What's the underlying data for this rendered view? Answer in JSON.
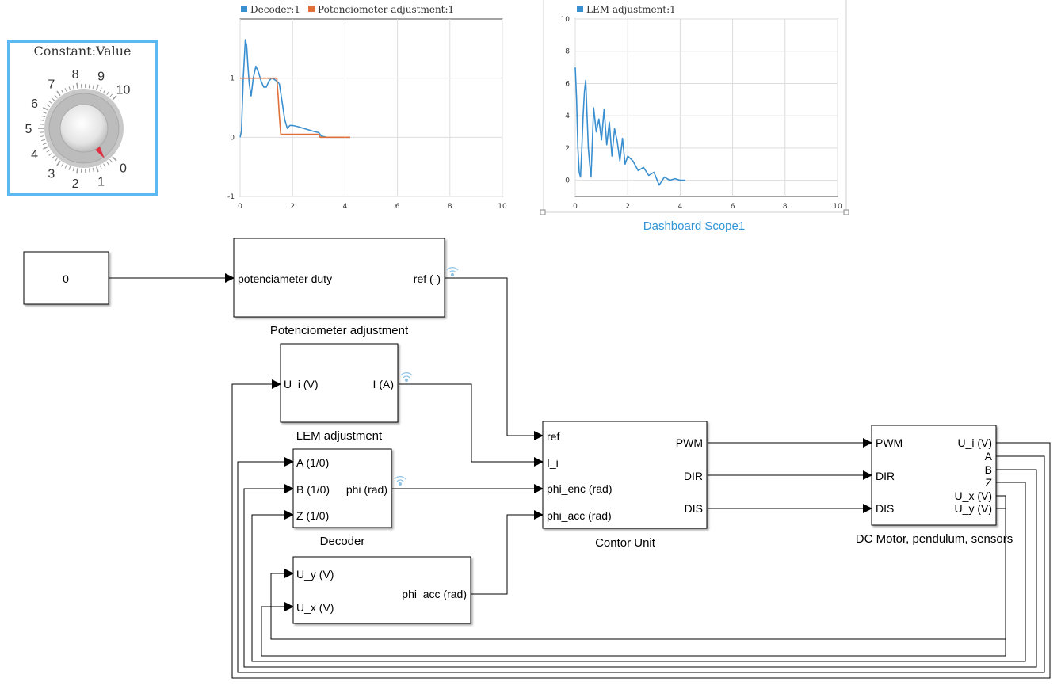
{
  "knob": {
    "title": "Constant:Value",
    "dial_labels": [
      "0",
      "1",
      "2",
      "3",
      "4",
      "5",
      "6",
      "7",
      "8",
      "9",
      "10"
    ],
    "value": 0.4,
    "range": [
      0,
      10
    ],
    "frame_color": "#5bb8f0",
    "needle_color": "#e03040"
  },
  "blocks": {
    "constant": {
      "value": "0"
    },
    "pot": {
      "in": "potenciameter duty",
      "out": "ref (-)",
      "label": "Potenciometer adjustment"
    },
    "lem": {
      "in": "U_i (V)",
      "out": "I (A)",
      "label": "LEM adjustment"
    },
    "decoder": {
      "in_a": "A (1/0)",
      "in_b": "B (1/0)",
      "in_z": "Z (1/0)",
      "out": "phi (rad)",
      "label": "Decoder"
    },
    "acc": {
      "in_y": "U_y (V)",
      "in_x": "U_x (V)",
      "out": "phi_acc (rad)"
    },
    "control": {
      "in_ref": "ref",
      "in_ii": "I_i",
      "in_enc": "phi_enc (rad)",
      "in_acc": "phi_acc (rad)",
      "out_pwm": "PWM",
      "out_dir": "DIR",
      "out_dis": "DIS",
      "label": "Contor Unit"
    },
    "motor": {
      "in_pwm": "PWM",
      "in_dir": "DIR",
      "in_dis": "DIS",
      "out_ui": "U_i (V)",
      "out_a": "A",
      "out_b": "B",
      "out_z": "Z",
      "out_ux": "U_x (V)",
      "out_uy": "U_y (V)",
      "label": "DC Motor, pendulum, sensors"
    }
  },
  "scope1_caption": "Dashboard Scope1",
  "chart_data": [
    {
      "type": "line",
      "xlim": [
        0,
        10
      ],
      "ylim": [
        -1,
        2
      ],
      "x_ticks": [
        "0",
        "2",
        "4",
        "6",
        "8",
        "10"
      ],
      "y_ticks": [
        "-1",
        "0",
        "1"
      ],
      "grid": true,
      "legend_position": "top",
      "series": [
        {
          "name": "Decoder:1",
          "color": "#3a8fd0",
          "x": [
            0,
            0.05,
            0.12,
            0.2,
            0.25,
            0.3,
            0.35,
            0.42,
            0.5,
            0.6,
            0.7,
            0.8,
            0.9,
            1.0,
            1.1,
            1.2,
            1.3,
            1.4,
            1.5,
            1.6,
            1.7,
            1.8,
            1.9,
            2.0,
            2.2,
            2.5,
            2.8,
            3.0,
            3.1,
            3.3,
            3.6,
            4.0,
            4.2
          ],
          "y": [
            0,
            0.1,
            1.0,
            1.65,
            1.55,
            1.2,
            0.9,
            0.7,
            1.0,
            1.2,
            1.1,
            0.95,
            0.85,
            0.85,
            0.95,
            1.0,
            0.98,
            0.95,
            0.9,
            0.6,
            0.3,
            0.15,
            0.2,
            0.2,
            0.18,
            0.14,
            0.1,
            0.08,
            0.02,
            0,
            0,
            0,
            0
          ]
        },
        {
          "name": "Potenciometer adjustment:1",
          "color": "#e0703a",
          "x": [
            0,
            0.5,
            1.0,
            1.4,
            1.45,
            1.5,
            1.55,
            1.6,
            2.0,
            2.5,
            3.0,
            3.05,
            3.5,
            4.0,
            4.2
          ],
          "y": [
            1,
            1,
            1,
            1,
            0.7,
            0.35,
            0.05,
            0.05,
            0.05,
            0.05,
            0.05,
            0,
            0,
            0,
            0
          ]
        }
      ]
    },
    {
      "type": "line",
      "xlim": [
        0,
        10
      ],
      "ylim": [
        -1,
        10
      ],
      "x_ticks": [
        "0",
        "2",
        "4",
        "6",
        "8",
        "10"
      ],
      "y_ticks": [
        "0",
        "2",
        "4",
        "6",
        "8",
        "10"
      ],
      "grid": true,
      "legend_position": "top",
      "series": [
        {
          "name": "LEM adjustment:1",
          "color": "#3a8fd0",
          "x": [
            0,
            0.05,
            0.1,
            0.15,
            0.2,
            0.25,
            0.3,
            0.35,
            0.4,
            0.45,
            0.5,
            0.55,
            0.6,
            0.7,
            0.8,
            0.9,
            1.0,
            1.1,
            1.2,
            1.3,
            1.4,
            1.5,
            1.6,
            1.7,
            1.8,
            1.9,
            2.0,
            2.2,
            2.4,
            2.6,
            2.8,
            3.0,
            3.2,
            3.4,
            3.6,
            3.8,
            4.0,
            4.2
          ],
          "y": [
            7,
            5,
            2,
            0.5,
            0.2,
            2,
            4,
            5.5,
            6.2,
            4,
            2,
            1,
            0.2,
            4.5,
            3,
            3.8,
            2.5,
            4.4,
            2.2,
            3.6,
            1.5,
            3.2,
            2.4,
            1.2,
            2.6,
            1.0,
            1.5,
            1.2,
            0.6,
            0.8,
            0.3,
            0.5,
            -0.3,
            0.2,
            0,
            0.1,
            0,
            0
          ]
        }
      ]
    }
  ]
}
